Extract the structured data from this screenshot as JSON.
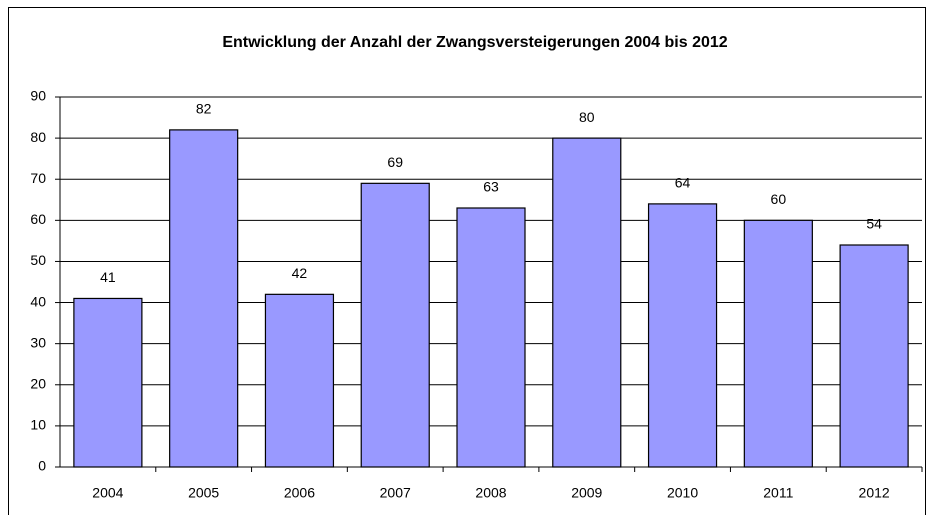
{
  "chart_data": {
    "type": "bar",
    "title": "Entwicklung der Anzahl der Zwangsversteigerungen 2004 bis 2012",
    "categories": [
      "2004",
      "2005",
      "2006",
      "2007",
      "2008",
      "2009",
      "2010",
      "2011",
      "2012"
    ],
    "values": [
      41,
      82,
      42,
      69,
      63,
      80,
      64,
      60,
      54
    ],
    "color": "#9999ff",
    "ylim": [
      0,
      90
    ],
    "yticks": [
      0,
      10,
      20,
      30,
      40,
      50,
      60,
      70,
      80,
      90
    ],
    "grid": true
  }
}
